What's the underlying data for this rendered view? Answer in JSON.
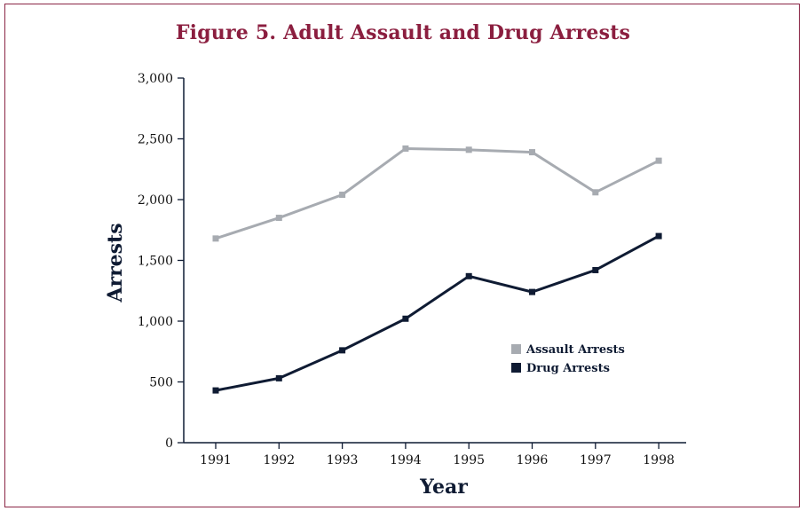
{
  "chart_data": {
    "type": "line",
    "title": "Figure 5. Adult Assault and Drug Arrests",
    "xlabel": "Year",
    "ylabel": "Arrests",
    "x": [
      "1991",
      "1992",
      "1993",
      "1994",
      "1995",
      "1996",
      "1997",
      "1998"
    ],
    "ylim": [
      0,
      3000
    ],
    "yticks": [
      0,
      500,
      1000,
      1500,
      2000,
      2500,
      3000
    ],
    "ytick_labels": [
      "0",
      "500",
      "1,000",
      "1,500",
      "2,000",
      "2,500",
      "3,000"
    ],
    "legend_position": "lower-right",
    "grid": false,
    "series": [
      {
        "name": "Assault Arrests",
        "color": "#a7abb1",
        "values": [
          1680,
          1850,
          2040,
          2420,
          2410,
          2390,
          2060,
          2320
        ]
      },
      {
        "name": "Drug Arrests",
        "color": "#0f1b33",
        "values": [
          430,
          530,
          760,
          1020,
          1370,
          1240,
          1420,
          1700
        ]
      }
    ]
  }
}
